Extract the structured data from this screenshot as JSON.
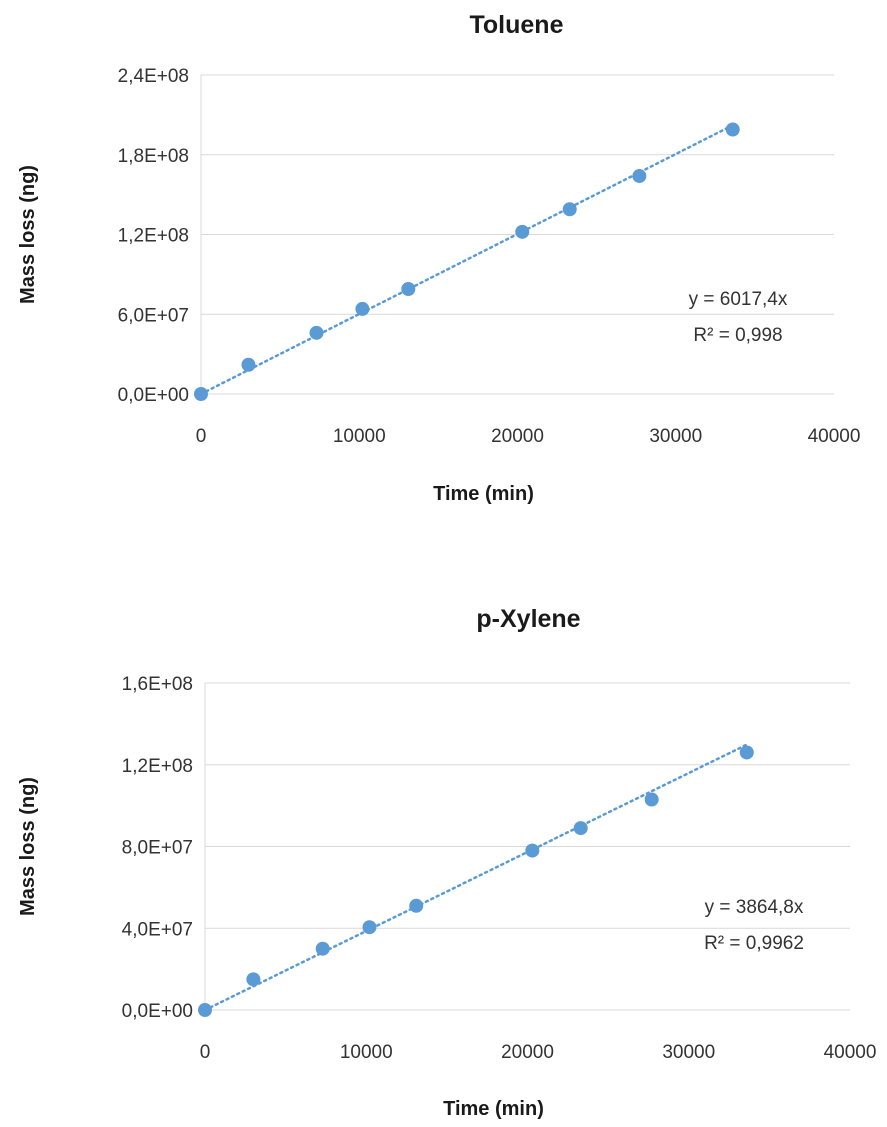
{
  "chart_data": [
    {
      "type": "scatter",
      "title": "Toluene",
      "xlabel": "Time (min)",
      "ylabel": "Mass loss (ng)",
      "xlim": [
        0,
        40000
      ],
      "ylim": [
        0,
        240000000
      ],
      "x_ticks": [
        0,
        10000,
        20000,
        30000,
        40000
      ],
      "x_tick_labels": [
        "0",
        "10000",
        "20000",
        "30000",
        "40000"
      ],
      "y_ticks": [
        0,
        60000000,
        120000000,
        180000000,
        240000000
      ],
      "y_tick_labels": [
        "0,0E+00",
        "6,0E+07",
        "1,2E+08",
        "1,8E+08",
        "2,4E+08"
      ],
      "grid": true,
      "color": "#5b9bd5",
      "series": [
        {
          "x": [
            0,
            3000,
            7300,
            10200,
            13100,
            20300,
            23300,
            27700,
            33600
          ],
          "y": [
            0,
            22000000,
            46000000,
            64000000,
            79000000,
            122000000,
            139000000,
            164000000,
            199000000
          ]
        }
      ],
      "trendline": {
        "type": "linear",
        "slope": 6017.4,
        "intercept": 0,
        "x_range": [
          0,
          33600
        ]
      },
      "annotations": [
        "y = 6017,4x",
        "R² = 0,998"
      ]
    },
    {
      "type": "scatter",
      "title": "p-Xylene",
      "xlabel": "Time (min)",
      "ylabel": "Mass loss (ng)",
      "xlim": [
        0,
        40000
      ],
      "ylim": [
        0,
        160000000
      ],
      "x_ticks": [
        0,
        10000,
        20000,
        30000,
        40000
      ],
      "x_tick_labels": [
        "0",
        "10000",
        "20000",
        "30000",
        "40000"
      ],
      "y_ticks": [
        0,
        40000000,
        80000000,
        120000000,
        160000000
      ],
      "y_tick_labels": [
        "0,0E+00",
        "4,0E+07",
        "8,0E+07",
        "1,2E+08",
        "1,6E+08"
      ],
      "grid": true,
      "color": "#5b9bd5",
      "series": [
        {
          "x": [
            0,
            3000,
            7300,
            10200,
            13100,
            20300,
            23300,
            27700,
            33600
          ],
          "y": [
            0,
            15000000,
            30000000,
            40500000,
            51000000,
            78000000,
            89000000,
            103000000,
            126000000
          ]
        }
      ],
      "trendline": {
        "type": "linear",
        "slope": 3864.8,
        "intercept": 0,
        "x_range": [
          0,
          33600
        ]
      },
      "annotations": [
        "y = 3864,8x",
        "R² = 0,9962"
      ]
    }
  ]
}
